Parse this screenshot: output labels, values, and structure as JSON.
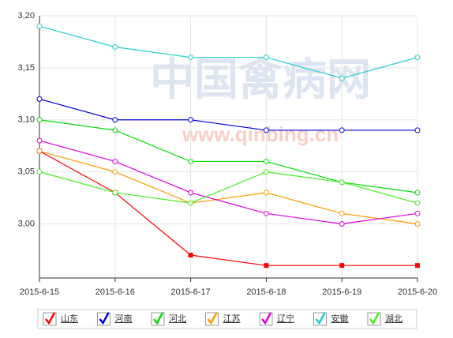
{
  "chart_data": {
    "type": "line",
    "watermark": [
      "中国禽病网",
      "www.qinbing.cn"
    ],
    "categories": [
      "2015-6-15",
      "2015-6-16",
      "2015-6-17",
      "2015-6-18",
      "2015-6-19",
      "2015-6-20"
    ],
    "series": [
      {
        "name": "山东",
        "color": "#ff0000",
        "marker": "square",
        "values": [
          3.07,
          3.03,
          2.97,
          2.96,
          2.96,
          2.96
        ]
      },
      {
        "name": "河南",
        "color": "#0000dd",
        "marker": "circle",
        "values": [
          3.12,
          3.1,
          3.1,
          3.09,
          3.09,
          3.09
        ]
      },
      {
        "name": "河北",
        "color": "#00dd00",
        "marker": "circle",
        "values": [
          3.1,
          3.09,
          3.06,
          3.06,
          3.04,
          3.03
        ]
      },
      {
        "name": "江苏",
        "color": "#ff9900",
        "marker": "circle",
        "values": [
          3.07,
          3.05,
          3.02,
          3.03,
          3.01,
          3.0
        ]
      },
      {
        "name": "辽宁",
        "color": "#dd00dd",
        "marker": "circle",
        "values": [
          3.08,
          3.06,
          3.03,
          3.01,
          3.0,
          3.01
        ]
      },
      {
        "name": "安徽",
        "color": "#22cccc",
        "marker": "circle",
        "values": [
          3.19,
          3.17,
          3.16,
          3.16,
          3.14,
          3.16
        ]
      },
      {
        "name": "湖北",
        "color": "#44ee22",
        "marker": "circle",
        "values": [
          3.05,
          3.03,
          3.02,
          3.05,
          3.04,
          3.02
        ]
      }
    ],
    "ylim": [
      2.948,
      3.2
    ],
    "yticks": [
      {
        "value": 3.0,
        "label": "3,00"
      },
      {
        "value": 3.05,
        "label": "3,05"
      },
      {
        "value": 3.1,
        "label": "3,10"
      },
      {
        "value": 3.15,
        "label": "3,15"
      },
      {
        "value": 3.2,
        "label": "3,20"
      }
    ],
    "grid": true,
    "legend": "bottom"
  }
}
